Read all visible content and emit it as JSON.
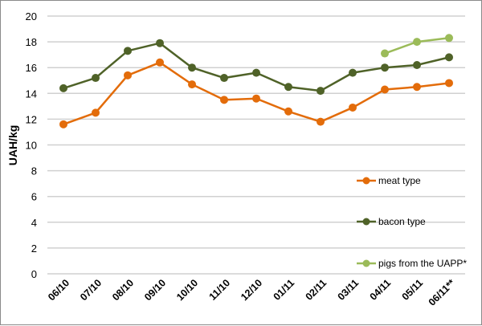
{
  "chart_data": {
    "type": "line",
    "title": "",
    "xlabel": "",
    "ylabel": "UAH/kg",
    "ylim": [
      0,
      20
    ],
    "yticks": [
      "0",
      "2",
      "4",
      "6",
      "8",
      "10",
      "12",
      "14",
      "16",
      "18",
      "20"
    ],
    "grid": true,
    "legend_position": "right-inside",
    "categories": [
      "06/10",
      "07/10",
      "08/10",
      "09/10",
      "10/10",
      "11/10",
      "12/10",
      "01/11",
      "02/11",
      "03/11",
      "04/11",
      "05/11",
      "06/11**"
    ],
    "series": [
      {
        "name": "meat type",
        "color": "#E36C0A",
        "values": [
          11.6,
          12.5,
          15.4,
          16.4,
          14.7,
          13.5,
          13.6,
          12.6,
          11.8,
          12.9,
          14.3,
          14.5,
          14.8
        ]
      },
      {
        "name": "bacon type",
        "color": "#4F6228",
        "values": [
          14.4,
          15.2,
          17.3,
          17.9,
          16.0,
          15.2,
          15.6,
          14.5,
          14.2,
          15.6,
          16.0,
          16.2,
          16.8
        ]
      },
      {
        "name": "pigs from the UAPP*",
        "color": "#9BBB59",
        "values": [
          null,
          null,
          null,
          null,
          null,
          null,
          null,
          null,
          null,
          null,
          17.1,
          18.0,
          18.3
        ]
      }
    ]
  }
}
